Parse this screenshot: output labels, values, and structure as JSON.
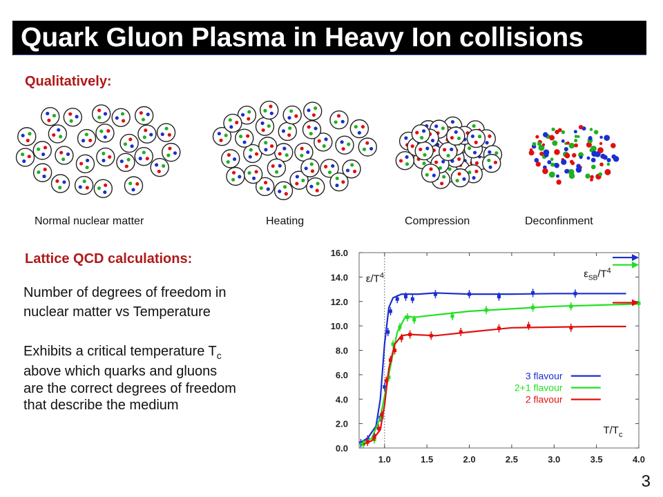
{
  "title": "Quark Gluon Plasma in Heavy Ion collisions",
  "qualitatively": "Qualitatively:",
  "stages": [
    "Normal nuclear matter",
    "Heating",
    "Compression",
    "Deconfinment"
  ],
  "lattice_heading": "Lattice QCD calculations:",
  "dof_text": [
    "Number of degrees of freedom in",
    "nuclear matter vs Temperature"
  ],
  "critical_text": {
    "line1_main": "Exhibits a critical temperature T",
    "line1_sub": "c",
    "line2": "above which quarks and gluons",
    "line3": "are the correct degrees of freedom",
    "line4": "that describe the medium"
  },
  "page_number": "3",
  "colors": {
    "title_bg": "#000000",
    "heading_red": "#b01818",
    "quark_red": "#e01010",
    "quark_blue": "#1a2fd0",
    "quark_green": "#20b020"
  },
  "chart_data": {
    "type": "line",
    "ylabel_main": "ε/T",
    "ylabel_sup": "4",
    "sb_label_main": "ε",
    "sb_label_sub": "SB",
    "sb_label_tail": "/T",
    "sb_label_sup": "4",
    "xlabel_main": "T/T",
    "xlabel_sub": "c",
    "xlim": [
      0.7,
      4.0
    ],
    "ylim": [
      0.0,
      16.0
    ],
    "xticks": [
      "1.0",
      "1.5",
      "2.0",
      "2.5",
      "3.0",
      "3.5",
      "4.0"
    ],
    "yticks": [
      "0.0",
      "2.0",
      "4.0",
      "6.0",
      "8.0",
      "10.0",
      "12.0",
      "14.0",
      "16.0"
    ],
    "critical_line_x": 1.0,
    "legend": "bottom-right",
    "series": [
      {
        "name": "3 flavour",
        "color": "#1a2fd0",
        "sb_limit": 15.6,
        "curve": [
          [
            0.7,
            0.4
          ],
          [
            0.8,
            0.8
          ],
          [
            0.9,
            1.8
          ],
          [
            0.95,
            4.0
          ],
          [
            1.0,
            8.5
          ],
          [
            1.05,
            11.5
          ],
          [
            1.1,
            12.3
          ],
          [
            1.2,
            12.6
          ],
          [
            1.4,
            12.6
          ],
          [
            1.6,
            12.7
          ],
          [
            2.0,
            12.6
          ],
          [
            2.5,
            12.6
          ],
          [
            3.0,
            12.65
          ],
          [
            3.5,
            12.65
          ],
          [
            3.85,
            12.65
          ]
        ],
        "points": [
          [
            0.72,
            0.4
          ],
          [
            0.8,
            0.7
          ],
          [
            0.88,
            1.0
          ],
          [
            0.95,
            2.5
          ],
          [
            1.0,
            5.0
          ],
          [
            1.04,
            9.5
          ],
          [
            1.07,
            11.2
          ],
          [
            1.15,
            12.2
          ],
          [
            1.25,
            12.4
          ],
          [
            1.33,
            12.2
          ],
          [
            1.6,
            12.6
          ],
          [
            2.0,
            12.6
          ],
          [
            2.35,
            12.4
          ],
          [
            2.75,
            12.7
          ],
          [
            3.25,
            12.65
          ]
        ]
      },
      {
        "name": "2+1 flavour",
        "color": "#20e020",
        "sb_limit": 15.0,
        "curve": [
          [
            0.7,
            0.3
          ],
          [
            0.85,
            0.8
          ],
          [
            0.95,
            2.5
          ],
          [
            1.05,
            6.0
          ],
          [
            1.15,
            9.5
          ],
          [
            1.25,
            10.8
          ],
          [
            1.35,
            10.7
          ],
          [
            1.6,
            10.9
          ],
          [
            2.0,
            11.2
          ],
          [
            2.5,
            11.4
          ],
          [
            3.0,
            11.6
          ],
          [
            3.5,
            11.7
          ],
          [
            4.0,
            11.8
          ]
        ],
        "points": [
          [
            0.75,
            0.3
          ],
          [
            0.88,
            0.7
          ],
          [
            0.97,
            2.5
          ],
          [
            1.05,
            5.8
          ],
          [
            1.1,
            8.5
          ],
          [
            1.18,
            9.9
          ],
          [
            1.27,
            10.7
          ],
          [
            1.35,
            10.5
          ],
          [
            1.8,
            10.8
          ],
          [
            2.2,
            11.3
          ],
          [
            2.75,
            11.5
          ],
          [
            3.2,
            11.6
          ],
          [
            4.0,
            11.85
          ]
        ]
      },
      {
        "name": "2 flavour",
        "color": "#e01010",
        "sb_limit": 11.9,
        "curve": [
          [
            0.75,
            0.3
          ],
          [
            0.85,
            0.6
          ],
          [
            0.95,
            1.5
          ],
          [
            1.0,
            3.5
          ],
          [
            1.05,
            6.5
          ],
          [
            1.12,
            8.5
          ],
          [
            1.2,
            9.2
          ],
          [
            1.3,
            9.3
          ],
          [
            1.6,
            9.2
          ],
          [
            2.0,
            9.5
          ],
          [
            2.5,
            9.85
          ],
          [
            3.0,
            9.9
          ],
          [
            3.5,
            9.95
          ],
          [
            3.85,
            9.95
          ]
        ],
        "points": [
          [
            0.8,
            0.5
          ],
          [
            0.88,
            0.9
          ],
          [
            0.93,
            1.6
          ],
          [
            0.97,
            2.7
          ],
          [
            1.02,
            5.5
          ],
          [
            1.07,
            7.2
          ],
          [
            1.12,
            8.0
          ],
          [
            1.2,
            9.0
          ],
          [
            1.3,
            9.3
          ],
          [
            1.55,
            9.2
          ],
          [
            1.9,
            9.5
          ],
          [
            2.35,
            9.8
          ],
          [
            2.7,
            10.0
          ],
          [
            3.2,
            9.85
          ]
        ]
      }
    ]
  }
}
